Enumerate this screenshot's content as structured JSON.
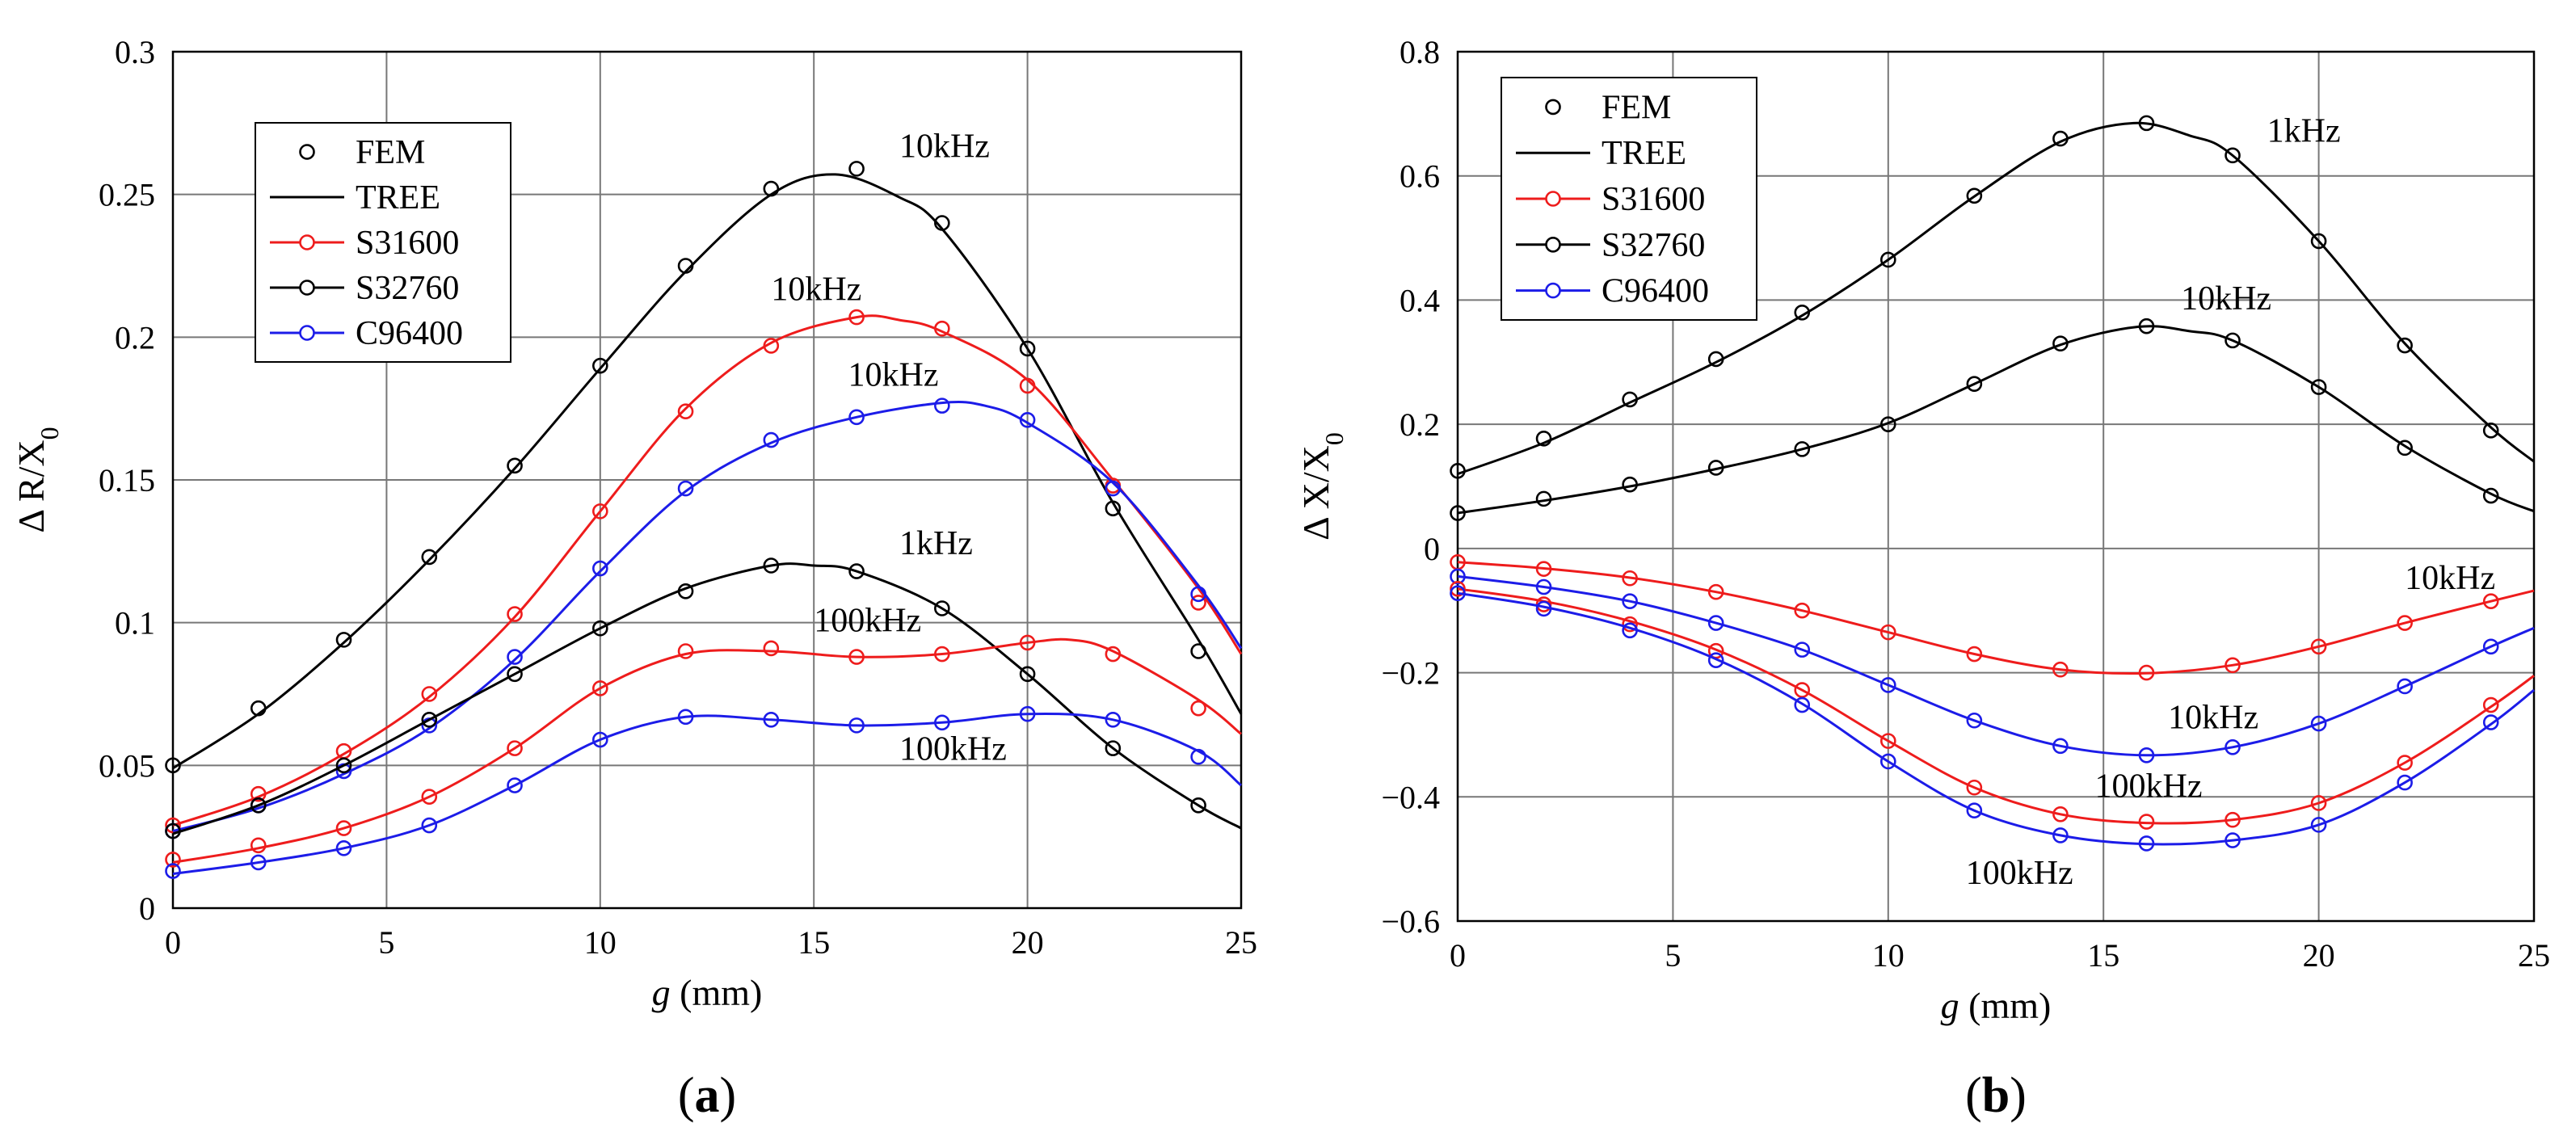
{
  "legend_entries": [
    "FEM",
    "TREE",
    "S31600",
    "S32760",
    "C96400"
  ],
  "colors": {
    "S31600": "#ee1c1c",
    "S32760": "#000000",
    "C96400": "#1c1ce8",
    "grid": "#777777"
  },
  "chart_data": [
    {
      "type": "line",
      "panel_label": "(a)",
      "panel_letter": "a",
      "xlabel": "g (mm)",
      "xlabel_var": "g",
      "xlabel_unit": "(mm)",
      "ylabel": "ΔR/X0",
      "ylabel_main": "Δ R/X",
      "ylabel_sub": "0",
      "xlim": [
        0,
        25
      ],
      "ylim": [
        0,
        0.3
      ],
      "xticks": [
        0,
        5,
        10,
        15,
        20,
        25
      ],
      "xtick_labels": [
        "0",
        "5",
        "10",
        "15",
        "20",
        "25"
      ],
      "yticks": [
        0,
        0.05,
        0.1,
        0.15,
        0.2,
        0.25,
        0.3
      ],
      "ytick_labels": [
        "0",
        "0.05",
        "0.1",
        "0.15",
        "0.2",
        "0.25",
        "0.3"
      ],
      "grid": true,
      "legend_position": "top-left",
      "x": [
        0,
        2,
        4,
        6,
        8,
        10,
        12,
        14,
        16,
        18,
        20,
        22,
        24
      ],
      "series": [
        {
          "material": "S32760",
          "freq": "10kHz",
          "fem": [
            0.05,
            0.07,
            0.094,
            0.123,
            0.155,
            0.19,
            0.225,
            0.252,
            0.259,
            0.24,
            0.196,
            0.14,
            0.09
          ],
          "tree": [
            [
              0,
              0.049
            ],
            [
              2,
              0.068
            ],
            [
              4,
              0.093
            ],
            [
              6,
              0.122
            ],
            [
              8,
              0.154
            ],
            [
              10,
              0.189
            ],
            [
              12,
              0.223
            ],
            [
              14,
              0.25
            ],
            [
              15.5,
              0.257
            ],
            [
              17,
              0.249
            ],
            [
              18,
              0.238
            ],
            [
              20,
              0.196
            ],
            [
              22,
              0.142
            ],
            [
              24,
              0.094
            ],
            [
              25,
              0.068
            ]
          ]
        },
        {
          "material": "S31600",
          "freq": "10kHz",
          "fem": [
            0.029,
            0.04,
            0.055,
            0.075,
            0.103,
            0.139,
            0.174,
            0.197,
            0.207,
            0.203,
            0.183,
            0.148,
            0.107
          ],
          "tree": [
            [
              0,
              0.029
            ],
            [
              2,
              0.039
            ],
            [
              4,
              0.054
            ],
            [
              6,
              0.074
            ],
            [
              8,
              0.102
            ],
            [
              10,
              0.139
            ],
            [
              12,
              0.175
            ],
            [
              14,
              0.198
            ],
            [
              16,
              0.207
            ],
            [
              17,
              0.206
            ],
            [
              18,
              0.202
            ],
            [
              20,
              0.185
            ],
            [
              22,
              0.15
            ],
            [
              24,
              0.112
            ],
            [
              25,
              0.089
            ]
          ]
        },
        {
          "material": "C96400",
          "freq": "10kHz",
          "fem": [
            0.027,
            0.036,
            0.048,
            0.064,
            0.088,
            0.119,
            0.147,
            0.164,
            0.172,
            0.176,
            0.171,
            0.147,
            0.11
          ],
          "tree": [
            [
              0,
              0.027
            ],
            [
              2,
              0.035
            ],
            [
              4,
              0.047
            ],
            [
              6,
              0.063
            ],
            [
              8,
              0.087
            ],
            [
              10,
              0.118
            ],
            [
              12,
              0.146
            ],
            [
              14,
              0.163
            ],
            [
              16,
              0.172
            ],
            [
              18,
              0.177
            ],
            [
              19,
              0.176
            ],
            [
              20,
              0.17
            ],
            [
              22,
              0.149
            ],
            [
              24,
              0.113
            ],
            [
              25,
              0.091
            ]
          ]
        },
        {
          "material": "S32760",
          "freq": "1kHz",
          "fem": [
            0.027,
            0.036,
            0.05,
            0.066,
            0.082,
            0.098,
            0.111,
            0.12,
            0.118,
            0.105,
            0.082,
            0.056,
            0.036
          ],
          "tree": [
            [
              0,
              0.026
            ],
            [
              2,
              0.036
            ],
            [
              4,
              0.05
            ],
            [
              6,
              0.066
            ],
            [
              8,
              0.082
            ],
            [
              10,
              0.098
            ],
            [
              12,
              0.112
            ],
            [
              14,
              0.12
            ],
            [
              15,
              0.12
            ],
            [
              16,
              0.118
            ],
            [
              18,
              0.105
            ],
            [
              20,
              0.082
            ],
            [
              22,
              0.056
            ],
            [
              24,
              0.036
            ],
            [
              25,
              0.028
            ]
          ]
        },
        {
          "material": "S31600",
          "freq": "100kHz",
          "fem": [
            0.017,
            0.022,
            0.028,
            0.039,
            0.056,
            0.077,
            0.09,
            0.091,
            0.088,
            0.089,
            0.093,
            0.089,
            0.07
          ],
          "tree": [
            [
              0,
              0.016
            ],
            [
              2,
              0.021
            ],
            [
              4,
              0.028
            ],
            [
              6,
              0.039
            ],
            [
              8,
              0.056
            ],
            [
              10,
              0.077
            ],
            [
              12,
              0.089
            ],
            [
              14,
              0.09
            ],
            [
              16,
              0.088
            ],
            [
              18,
              0.089
            ],
            [
              20,
              0.093
            ],
            [
              21,
              0.094
            ],
            [
              22,
              0.09
            ],
            [
              24,
              0.073
            ],
            [
              25,
              0.061
            ]
          ]
        },
        {
          "material": "C96400",
          "freq": "100kHz",
          "fem": [
            0.013,
            0.016,
            0.021,
            0.029,
            0.043,
            0.059,
            0.067,
            0.066,
            0.064,
            0.065,
            0.068,
            0.066,
            0.053
          ],
          "tree": [
            [
              0,
              0.012
            ],
            [
              2,
              0.016
            ],
            [
              4,
              0.021
            ],
            [
              6,
              0.029
            ],
            [
              8,
              0.043
            ],
            [
              10,
              0.059
            ],
            [
              12,
              0.067
            ],
            [
              14,
              0.066
            ],
            [
              16,
              0.064
            ],
            [
              18,
              0.065
            ],
            [
              20,
              0.068
            ],
            [
              22,
              0.066
            ],
            [
              24,
              0.055
            ],
            [
              25,
              0.043
            ]
          ]
        }
      ],
      "annotations": [
        {
          "text": "10kHz",
          "x": 17.0,
          "y": 0.263
        },
        {
          "text": "10kHz",
          "x": 14.0,
          "y": 0.213
        },
        {
          "text": "10kHz",
          "x": 15.8,
          "y": 0.183
        },
        {
          "text": "1kHz",
          "x": 17.0,
          "y": 0.124
        },
        {
          "text": "100kHz",
          "x": 15.0,
          "y": 0.097
        },
        {
          "text": "100kHz",
          "x": 17.0,
          "y": 0.052
        }
      ]
    },
    {
      "type": "line",
      "panel_label": "(b)",
      "panel_letter": "b",
      "xlabel": "g (mm)",
      "xlabel_var": "g",
      "xlabel_unit": "(mm)",
      "ylabel": "ΔX/X0",
      "ylabel_main": "Δ X/X",
      "ylabel_sub": "0",
      "xlim": [
        0,
        25
      ],
      "ylim": [
        -0.6,
        0.8
      ],
      "xticks": [
        0,
        5,
        10,
        15,
        20,
        25
      ],
      "xtick_labels": [
        "0",
        "5",
        "10",
        "15",
        "20",
        "25"
      ],
      "yticks": [
        -0.6,
        -0.4,
        -0.2,
        0,
        0.2,
        0.4,
        0.6,
        0.8
      ],
      "ytick_labels": [
        "−0.6",
        "−0.4",
        "−0.2",
        "0",
        "0.2",
        "0.4",
        "0.6",
        "0.8"
      ],
      "grid": true,
      "legend_position": "top-left",
      "x": [
        0,
        2,
        4,
        6,
        8,
        10,
        12,
        14,
        16,
        18,
        20,
        22,
        24
      ],
      "series": [
        {
          "material": "S32760",
          "freq": "1kHz",
          "fem": [
            0.125,
            0.177,
            0.24,
            0.305,
            0.38,
            0.465,
            0.568,
            0.66,
            0.685,
            0.633,
            0.495,
            0.327,
            0.19
          ],
          "tree": [
            [
              0,
              0.12
            ],
            [
              2,
              0.17
            ],
            [
              4,
              0.235
            ],
            [
              6,
              0.3
            ],
            [
              8,
              0.375
            ],
            [
              10,
              0.465
            ],
            [
              12,
              0.567
            ],
            [
              14,
              0.655
            ],
            [
              15.7,
              0.685
            ],
            [
              17,
              0.665
            ],
            [
              18,
              0.633
            ],
            [
              20,
              0.495
            ],
            [
              22,
              0.33
            ],
            [
              24,
              0.195
            ],
            [
              25,
              0.14
            ]
          ]
        },
        {
          "material": "S32760",
          "freq": "10kHz",
          "fem": [
            0.057,
            0.08,
            0.103,
            0.13,
            0.16,
            0.2,
            0.265,
            0.33,
            0.358,
            0.335,
            0.26,
            0.162,
            0.085
          ],
          "tree": [
            [
              0,
              0.057
            ],
            [
              2,
              0.077
            ],
            [
              4,
              0.1
            ],
            [
              6,
              0.128
            ],
            [
              8,
              0.16
            ],
            [
              10,
              0.202
            ],
            [
              12,
              0.265
            ],
            [
              14,
              0.328
            ],
            [
              15.8,
              0.357
            ],
            [
              17,
              0.35
            ],
            [
              18,
              0.335
            ],
            [
              20,
              0.26
            ],
            [
              22,
              0.165
            ],
            [
              24,
              0.088
            ],
            [
              25,
              0.06
            ]
          ]
        },
        {
          "material": "S31600",
          "freq": "10kHz",
          "fem": [
            -0.022,
            -0.033,
            -0.048,
            -0.07,
            -0.1,
            -0.135,
            -0.17,
            -0.195,
            -0.2,
            -0.188,
            -0.158,
            -0.12,
            -0.085
          ],
          "tree": [
            [
              0,
              -0.022
            ],
            [
              2,
              -0.032
            ],
            [
              4,
              -0.047
            ],
            [
              6,
              -0.07
            ],
            [
              8,
              -0.1
            ],
            [
              10,
              -0.135
            ],
            [
              12,
              -0.17
            ],
            [
              14,
              -0.195
            ],
            [
              16,
              -0.201
            ],
            [
              18,
              -0.188
            ],
            [
              20,
              -0.158
            ],
            [
              22,
              -0.12
            ],
            [
              24,
              -0.085
            ],
            [
              25,
              -0.068
            ]
          ]
        },
        {
          "material": "C96400",
          "freq": "10kHz",
          "fem": [
            -0.045,
            -0.062,
            -0.085,
            -0.12,
            -0.163,
            -0.22,
            -0.277,
            -0.318,
            -0.333,
            -0.32,
            -0.282,
            -0.222,
            -0.158
          ],
          "tree": [
            [
              0,
              -0.045
            ],
            [
              2,
              -0.062
            ],
            [
              4,
              -0.085
            ],
            [
              6,
              -0.12
            ],
            [
              8,
              -0.163
            ],
            [
              10,
              -0.22
            ],
            [
              12,
              -0.277
            ],
            [
              14,
              -0.318
            ],
            [
              16,
              -0.333
            ],
            [
              18,
              -0.32
            ],
            [
              20,
              -0.282
            ],
            [
              22,
              -0.222
            ],
            [
              24,
              -0.158
            ],
            [
              25,
              -0.128
            ]
          ]
        },
        {
          "material": "S31600",
          "freq": "100kHz",
          "fem": [
            -0.065,
            -0.09,
            -0.122,
            -0.165,
            -0.228,
            -0.31,
            -0.385,
            -0.428,
            -0.44,
            -0.437,
            -0.41,
            -0.345,
            -0.252
          ],
          "tree": [
            [
              0,
              -0.065
            ],
            [
              2,
              -0.085
            ],
            [
              4,
              -0.117
            ],
            [
              6,
              -0.163
            ],
            [
              8,
              -0.228
            ],
            [
              10,
              -0.31
            ],
            [
              12,
              -0.385
            ],
            [
              14,
              -0.428
            ],
            [
              16,
              -0.442
            ],
            [
              18,
              -0.437
            ],
            [
              20,
              -0.41
            ],
            [
              22,
              -0.345
            ],
            [
              24,
              -0.255
            ],
            [
              25,
              -0.205
            ]
          ]
        },
        {
          "material": "C96400",
          "freq": "100kHz",
          "fem": [
            -0.072,
            -0.097,
            -0.132,
            -0.18,
            -0.252,
            -0.343,
            -0.422,
            -0.462,
            -0.475,
            -0.47,
            -0.445,
            -0.377,
            -0.28
          ],
          "tree": [
            [
              0,
              -0.072
            ],
            [
              2,
              -0.094
            ],
            [
              4,
              -0.128
            ],
            [
              6,
              -0.178
            ],
            [
              8,
              -0.25
            ],
            [
              10,
              -0.343
            ],
            [
              12,
              -0.422
            ],
            [
              14,
              -0.462
            ],
            [
              16,
              -0.476
            ],
            [
              18,
              -0.47
            ],
            [
              20,
              -0.445
            ],
            [
              22,
              -0.377
            ],
            [
              24,
              -0.283
            ],
            [
              25,
              -0.228
            ]
          ]
        }
      ],
      "annotations": [
        {
          "text": "1kHz",
          "x": 18.8,
          "y": 0.655
        },
        {
          "text": "10kHz",
          "x": 16.8,
          "y": 0.385
        },
        {
          "text": "10kHz",
          "x": 22.0,
          "y": -0.065
        },
        {
          "text": "10kHz",
          "x": 16.5,
          "y": -0.29
        },
        {
          "text": "100kHz",
          "x": 14.8,
          "y": -0.4
        },
        {
          "text": "100kHz",
          "x": 11.8,
          "y": -0.54
        }
      ]
    }
  ]
}
